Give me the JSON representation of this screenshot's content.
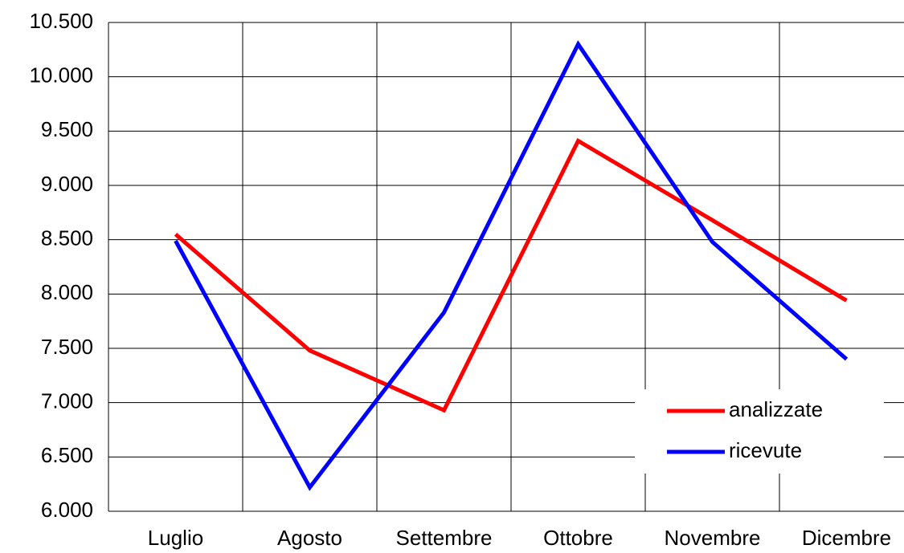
{
  "chart_data": {
    "type": "line",
    "categories": [
      "Luglio",
      "Agosto",
      "Settembre",
      "Ottobre",
      "Novembre",
      "Dicembre"
    ],
    "series": [
      {
        "name": "analizzate",
        "color": "#ff0000",
        "values": [
          8550,
          7480,
          6930,
          9410,
          8680,
          7940
        ]
      },
      {
        "name": "ricevute",
        "color": "#0000ff",
        "values": [
          8490,
          6220,
          7830,
          10300,
          8480,
          7400
        ]
      }
    ],
    "ylim": [
      6000,
      10500
    ],
    "yticks": [
      {
        "value": 6000,
        "label": "6.000"
      },
      {
        "value": 6500,
        "label": "6.500"
      },
      {
        "value": 7000,
        "label": "7.000"
      },
      {
        "value": 7500,
        "label": "7.500"
      },
      {
        "value": 8000,
        "label": "8.000"
      },
      {
        "value": 8500,
        "label": "8.500"
      },
      {
        "value": 9000,
        "label": "9.000"
      },
      {
        "value": 9500,
        "label": "9.500"
      },
      {
        "value": 10000,
        "label": "10.000"
      },
      {
        "value": 10500,
        "label": "10.500"
      }
    ],
    "grid": true,
    "legend": "lower right"
  }
}
